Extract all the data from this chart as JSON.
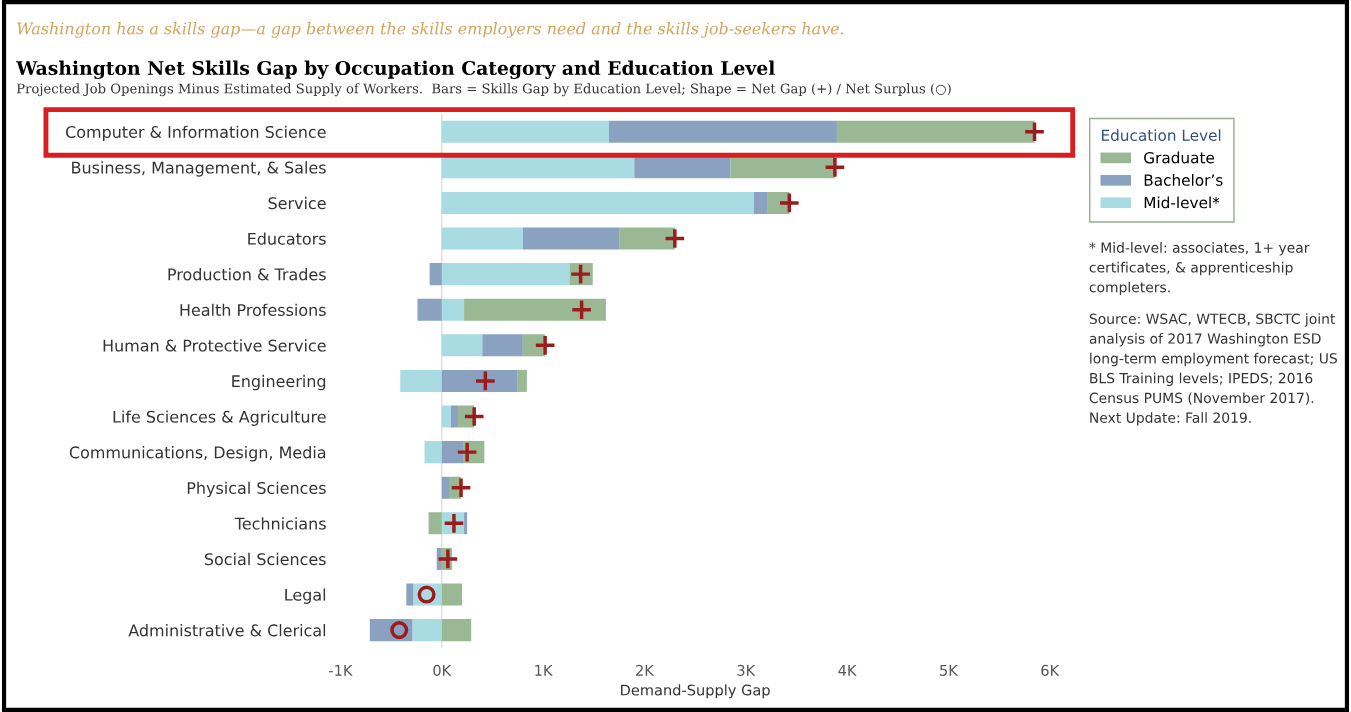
{
  "chart_data": {
    "type": "bar",
    "orientation": "horizontal",
    "stacked": true,
    "title": "Washington Net Skills Gap by Occupation Category and Education Level",
    "subtitle": "Projected Job Openings Minus Estimated Supply of Workers.  Bars = Skills Gap by Education Level; Shape = Net Gap (+) / Net Surplus (○)",
    "xlabel": "Demand-Supply Gap",
    "legend_title": "Education Level",
    "legend": "right",
    "grid": false,
    "ref_lines": [
      {
        "axis": "x",
        "value": 0,
        "color": "#dddddd"
      }
    ],
    "annotations": [
      "Washington has a skills gap—a gap between the skills employers need and the skills job-seekers have.",
      "* Mid-level: associates, 1+ year certificates, & apprenticeship completers.",
      "Source: WSAC, WTECB, SBCTC joint analysis of 2017 Washington ESD long-term employment forecast; US BLS Training levels; IPEDS; 2016 Census PUMS (November 2017). Next Update: Fall 2019."
    ],
    "categories": [
      "Computer & Information Science",
      "Business, Management, & Sales",
      "Service",
      "Educators",
      "Production & Trades",
      "Health Professions",
      "Human & Protective Service",
      "Engineering",
      "Life Sciences & Agriculture",
      "Communications, Design, Media",
      "Physical Sciences",
      "Technicians",
      "Social Sciences",
      "Legal",
      "Administrative & Clerical"
    ],
    "xlim": [
      -1000,
      6000
    ],
    "xticks": [
      {
        "value": -1000,
        "label": "-1K"
      },
      {
        "value": 0,
        "label": "0K"
      },
      {
        "value": 1000,
        "label": "1K"
      },
      {
        "value": 2000,
        "label": "2K"
      },
      {
        "value": 3000,
        "label": "3K"
      },
      {
        "value": 4000,
        "label": "4K"
      },
      {
        "value": 5000,
        "label": "5K"
      },
      {
        "value": 6000,
        "label": "6K"
      }
    ],
    "series": [
      {
        "name": "Mid-level*",
        "color": "#a9dbe3",
        "values": [
          1650,
          1900,
          3080,
          800,
          1260,
          220,
          400,
          -410,
          90,
          -170,
          null,
          220,
          null,
          -280,
          -290
        ]
      },
      {
        "name": "Bachelor’s",
        "color": "#8aa2c0",
        "values": [
          2250,
          950,
          130,
          950,
          -120,
          -240,
          400,
          750,
          70,
          210,
          80,
          30,
          -50,
          -70,
          -420
        ]
      },
      {
        "name": "Graduate",
        "color": "#9bb894",
        "values": [
          1950,
          1030,
          220,
          550,
          230,
          1400,
          220,
          90,
          160,
          210,
          110,
          -130,
          100,
          200,
          290
        ]
      },
      {
        "type": "scatter",
        "marker": "cross",
        "color": "#9b1c1c",
        "values": [
          5850,
          3880,
          3430,
          2300,
          1370,
          1380,
          1020,
          430,
          320,
          250,
          190,
          120,
          60,
          null,
          null
        ]
      },
      {
        "type": "scatter",
        "marker": "circle",
        "color": "#9b1c1c",
        "values": [
          null,
          null,
          null,
          null,
          null,
          null,
          null,
          null,
          null,
          null,
          null,
          null,
          null,
          -150,
          -420
        ]
      }
    ]
  }
}
